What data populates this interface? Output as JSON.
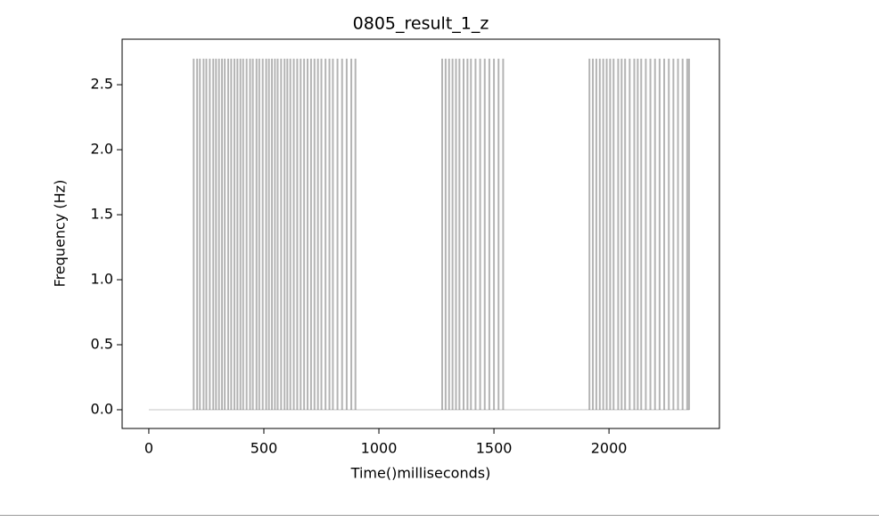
{
  "chart_data": {
    "type": "vlines",
    "title": "0805_result_1_z",
    "xlabel": "Time()milliseconds)",
    "ylabel": "Frequency (Hz)",
    "xlim": [
      -116,
      2480
    ],
    "xticks": [
      0,
      500,
      1000,
      1500,
      2000
    ],
    "ylim": [
      -0.144,
      2.85
    ],
    "yticks": [
      {
        "value": 0,
        "label": "0.0"
      },
      0.5,
      {
        "value": 1,
        "label": "1.0"
      },
      1.5,
      {
        "value": 2,
        "label": "2.0"
      },
      2.5
    ],
    "color": "#3a3a3a",
    "alpha": 0.38,
    "baseline": {
      "x": [
        0,
        2350
      ],
      "values": [
        0,
        0
      ],
      "color": "#d8d8d8"
    },
    "series": [
      {
        "x": [
          195,
          210,
          222,
          238,
          250,
          265,
          280,
          292,
          305,
          318,
          330,
          345,
          358,
          372,
          385,
          398,
          410,
          425,
          440,
          452,
          468,
          480,
          495,
          510,
          522,
          535,
          548,
          560,
          575,
          590,
          602,
          615,
          630,
          645,
          660,
          675,
          690,
          705,
          720,
          735,
          750,
          768,
          785,
          800,
          820,
          840,
          860,
          880,
          898
        ],
        "values": [
          2.7,
          2.7,
          2.7,
          2.7,
          2.7,
          2.7,
          2.7,
          2.7,
          2.7,
          2.7,
          2.7,
          2.7,
          2.7,
          2.7,
          2.7,
          2.7,
          2.7,
          2.7,
          2.7,
          2.7,
          2.7,
          2.7,
          2.7,
          2.7,
          2.7,
          2.7,
          2.7,
          2.7,
          2.7,
          2.7,
          2.7,
          2.7,
          2.7,
          2.7,
          2.7,
          2.7,
          2.7,
          2.7,
          2.7,
          2.7,
          2.7,
          2.7,
          2.7,
          2.7,
          2.7,
          2.7,
          2.7,
          2.7,
          2.7
        ]
      },
      {
        "x": [
          1275,
          1290,
          1305,
          1320,
          1335,
          1350,
          1368,
          1385,
          1400,
          1420,
          1440,
          1460,
          1480,
          1500,
          1520,
          1540
        ],
        "values": [
          2.7,
          2.7,
          2.7,
          2.7,
          2.7,
          2.7,
          2.7,
          2.7,
          2.7,
          2.7,
          2.7,
          2.7,
          2.7,
          2.7,
          2.7,
          2.7
        ]
      },
      {
        "x": [
          1915,
          1930,
          1945,
          1960,
          1975,
          1990,
          2005,
          2020,
          2040,
          2055,
          2070,
          2090,
          2110,
          2125,
          2140,
          2160,
          2180,
          2200,
          2220,
          2240,
          2260,
          2280,
          2300,
          2320,
          2340,
          2348
        ],
        "values": [
          2.7,
          2.7,
          2.7,
          2.7,
          2.7,
          2.7,
          2.7,
          2.7,
          2.7,
          2.7,
          2.7,
          2.7,
          2.7,
          2.7,
          2.7,
          2.7,
          2.7,
          2.7,
          2.7,
          2.7,
          2.7,
          2.7,
          2.7,
          2.7,
          2.7,
          2.7
        ]
      }
    ]
  }
}
